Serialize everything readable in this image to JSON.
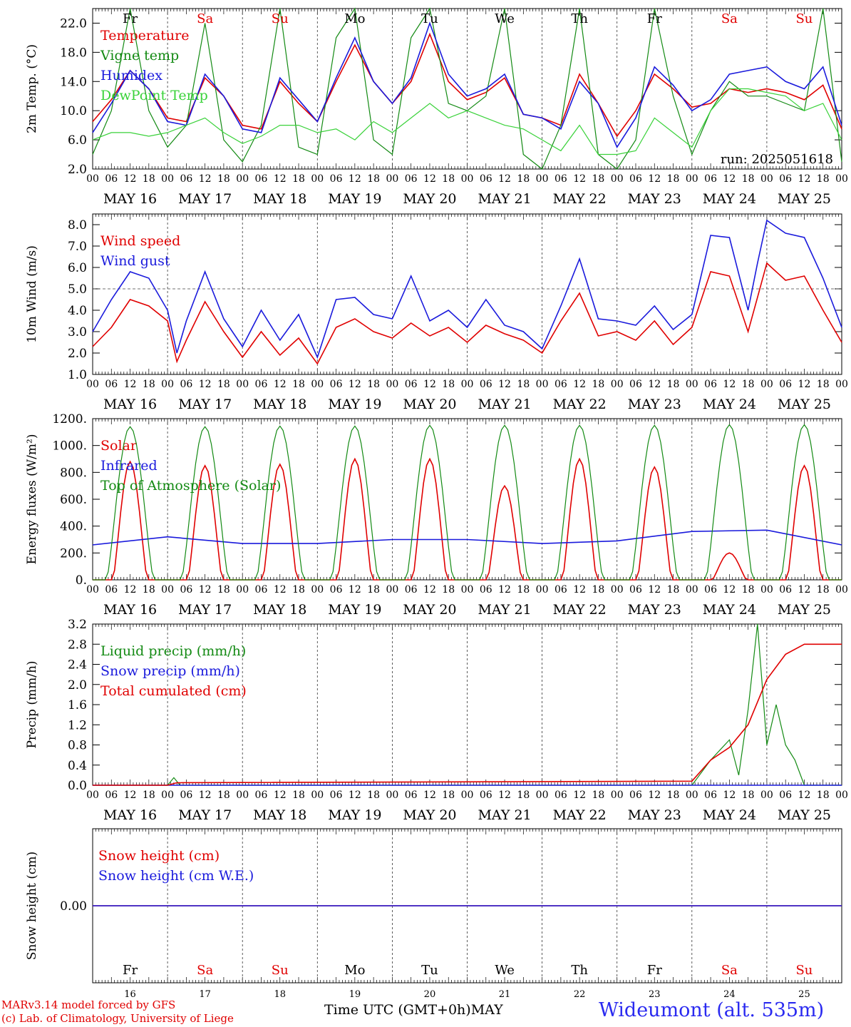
{
  "colors": {
    "red": "#e00000",
    "green": "#138a13",
    "blue": "#1a1adc",
    "lightgreen": "#3ad23a",
    "grid": "#555555"
  },
  "days": [
    {
      "abbr": "Fr",
      "weekend": false,
      "date": "MAY 16",
      "num": "16"
    },
    {
      "abbr": "Sa",
      "weekend": true,
      "date": "MAY 17",
      "num": "17"
    },
    {
      "abbr": "Su",
      "weekend": true,
      "date": "MAY 18",
      "num": "18"
    },
    {
      "abbr": "Mo",
      "weekend": false,
      "date": "MAY 19",
      "num": "19"
    },
    {
      "abbr": "Tu",
      "weekend": false,
      "date": "MAY 20",
      "num": "20"
    },
    {
      "abbr": "We",
      "weekend": false,
      "date": "MAY 21",
      "num": "21"
    },
    {
      "abbr": "Th",
      "weekend": false,
      "date": "MAY 22",
      "num": "22"
    },
    {
      "abbr": "Fr",
      "weekend": false,
      "date": "MAY 23",
      "num": "23"
    },
    {
      "abbr": "Sa",
      "weekend": true,
      "date": "MAY 24",
      "num": "24"
    },
    {
      "abbr": "Su",
      "weekend": true,
      "date": "MAY 25",
      "num": "25"
    }
  ],
  "hour_labels": [
    "00",
    "06",
    "12",
    "18"
  ],
  "footer": {
    "model": "MARv3.14 model forced by GFS",
    "credit": "(c) Lab. of Climatology, University of Liege",
    "axis_title": "Time UTC (GMT+0h)",
    "month": "MAY",
    "station": "Wideumont (alt. 535m)"
  },
  "chart_data": [
    {
      "type": "line",
      "ylabel": "2m Temp. (°C)",
      "ylim": [
        2,
        24
      ],
      "yticks": [
        "2.0",
        "6.0",
        "10.0",
        "14.0",
        "18.0",
        "22.0"
      ],
      "ytick_values": [
        2,
        6,
        10,
        14,
        18,
        22
      ],
      "run_label": "run: 2025051618",
      "series": [
        {
          "name": "Temperature",
          "color": "red",
          "x": [
            0,
            6,
            12,
            18,
            24,
            30,
            36,
            42,
            48,
            54,
            60,
            66,
            72,
            78,
            84,
            90,
            96,
            102,
            108,
            114,
            120,
            126,
            132,
            138,
            144,
            150,
            156,
            162,
            168,
            174,
            180,
            186,
            192,
            198,
            204,
            210,
            216,
            222,
            228,
            234,
            240
          ],
          "values": [
            8.5,
            11.5,
            15.5,
            13,
            9,
            8.5,
            14.5,
            12,
            8,
            7.5,
            14,
            11,
            8.5,
            14,
            19,
            14,
            11,
            14,
            20.5,
            14,
            11.5,
            12.5,
            14.5,
            9.5,
            9,
            8,
            15,
            11,
            6.5,
            10,
            15,
            13,
            10.5,
            11,
            13,
            12.5,
            13,
            12.5,
            11.5,
            13.5,
            7.5
          ]
        },
        {
          "name": "Vigne temp",
          "color": "green",
          "x": [
            0,
            6,
            12,
            18,
            24,
            30,
            36,
            42,
            48,
            54,
            60,
            66,
            72,
            78,
            84,
            90,
            96,
            102,
            108,
            114,
            120,
            126,
            132,
            138,
            144,
            150,
            156,
            162,
            168,
            174,
            180,
            186,
            192,
            198,
            204,
            210,
            216,
            222,
            228,
            234,
            240
          ],
          "values": [
            4,
            10,
            24,
            10,
            5,
            8,
            22,
            6,
            3,
            8,
            24,
            5,
            4,
            20,
            24,
            6,
            4,
            20,
            24,
            11,
            10,
            12,
            24,
            4,
            2,
            8,
            24,
            4,
            2,
            6,
            24,
            12,
            4,
            10,
            14,
            12,
            12,
            11,
            10,
            24,
            3
          ]
        },
        {
          "name": "Humidex",
          "color": "blue",
          "x": [
            0,
            6,
            12,
            18,
            24,
            30,
            36,
            42,
            48,
            54,
            60,
            66,
            72,
            78,
            84,
            90,
            96,
            102,
            108,
            114,
            120,
            126,
            132,
            138,
            144,
            150,
            156,
            162,
            168,
            174,
            180,
            186,
            192,
            198,
            204,
            210,
            216,
            222,
            228,
            234,
            240
          ],
          "values": [
            7,
            11,
            15.5,
            13,
            8.5,
            8,
            15,
            12,
            7.5,
            7,
            14.5,
            11.5,
            8.5,
            14.5,
            20,
            14,
            11,
            14.5,
            22,
            15,
            12,
            13,
            15,
            9.5,
            9,
            7.5,
            14,
            11,
            5,
            9,
            16,
            13.5,
            10,
            11.5,
            15,
            15.5,
            16,
            14,
            13,
            16,
            8
          ]
        },
        {
          "name": "DewPoint Temp",
          "color": "lightgreen",
          "x": [
            0,
            6,
            12,
            18,
            24,
            30,
            36,
            42,
            48,
            54,
            60,
            66,
            72,
            78,
            84,
            90,
            96,
            102,
            108,
            114,
            120,
            126,
            132,
            138,
            144,
            150,
            156,
            162,
            168,
            174,
            180,
            186,
            192,
            198,
            204,
            210,
            216,
            222,
            228,
            234,
            240
          ],
          "values": [
            6,
            7,
            7,
            6.5,
            7,
            8,
            9,
            7,
            5.5,
            6.5,
            8,
            8,
            7,
            7.5,
            6,
            8.5,
            7,
            9,
            11,
            9,
            10,
            9,
            8,
            7.5,
            6,
            4.5,
            8,
            4,
            4,
            4.5,
            9,
            7,
            5,
            10,
            13,
            13,
            12.5,
            12,
            10,
            11,
            6
          ]
        }
      ]
    },
    {
      "type": "line",
      "ylabel": "10m Wind (m/s)",
      "ylim": [
        1,
        8.5
      ],
      "yticks": [
        "1.0",
        "2.0",
        "3.0",
        "4.0",
        "5.0",
        "6.0",
        "7.0",
        "8.0"
      ],
      "ytick_values": [
        1,
        2,
        3,
        4,
        5,
        6,
        7,
        8
      ],
      "reference_line": 5,
      "series": [
        {
          "name": "Wind speed",
          "color": "red",
          "x": [
            0,
            6,
            12,
            18,
            24,
            27,
            30,
            36,
            42,
            48,
            54,
            60,
            66,
            72,
            78,
            84,
            90,
            96,
            102,
            108,
            114,
            120,
            126,
            132,
            138,
            144,
            150,
            156,
            162,
            168,
            174,
            180,
            186,
            192,
            198,
            204,
            210,
            213,
            216,
            222,
            228,
            234,
            240
          ],
          "values": [
            2.3,
            3.2,
            4.5,
            4.2,
            3.5,
            1.6,
            2.6,
            4.4,
            3.0,
            1.8,
            3.0,
            1.9,
            2.7,
            1.5,
            3.2,
            3.6,
            3.0,
            2.7,
            3.4,
            2.8,
            3.2,
            2.5,
            3.3,
            2.9,
            2.6,
            2.0,
            3.5,
            4.8,
            2.8,
            3.0,
            2.6,
            3.5,
            2.4,
            3.2,
            5.8,
            5.6,
            3.0,
            4.6,
            6.2,
            5.4,
            5.6,
            4.0,
            2.5
          ]
        },
        {
          "name": "Wind gust",
          "color": "blue",
          "x": [
            0,
            6,
            12,
            18,
            24,
            27,
            30,
            36,
            42,
            48,
            54,
            60,
            66,
            72,
            78,
            84,
            90,
            96,
            102,
            108,
            114,
            120,
            126,
            132,
            138,
            144,
            150,
            156,
            162,
            168,
            174,
            180,
            186,
            192,
            198,
            204,
            210,
            213,
            216,
            222,
            228,
            234,
            240
          ],
          "values": [
            3.0,
            4.5,
            5.8,
            5.5,
            4.0,
            2.0,
            3.5,
            5.8,
            3.6,
            2.3,
            4.0,
            2.6,
            3.8,
            1.8,
            4.5,
            4.6,
            3.8,
            3.6,
            5.6,
            3.5,
            4.0,
            3.2,
            4.5,
            3.3,
            3.0,
            2.2,
            4.2,
            6.4,
            3.6,
            3.5,
            3.3,
            4.2,
            3.1,
            3.8,
            7.5,
            7.4,
            4.0,
            6.2,
            8.2,
            7.6,
            7.4,
            5.5,
            3.2
          ]
        }
      ]
    },
    {
      "type": "line",
      "ylabel": "Energy fluxes (W/m²)",
      "ylim": [
        0,
        1200
      ],
      "yticks": [
        "0.",
        "200.",
        "400.",
        "600.",
        "800.",
        "1000.",
        "1200."
      ],
      "ytick_values": [
        0,
        200,
        400,
        600,
        800,
        1000,
        1200
      ],
      "series": [
        {
          "name": "Solar",
          "color": "red",
          "peaks": [
            {
              "day": 0,
              "value": 880
            },
            {
              "day": 1,
              "value": 850
            },
            {
              "day": 2,
              "value": 860
            },
            {
              "day": 3,
              "value": 900
            },
            {
              "day": 4,
              "value": 900
            },
            {
              "day": 5,
              "value": 700
            },
            {
              "day": 6,
              "value": 900
            },
            {
              "day": 7,
              "value": 840
            },
            {
              "day": 8,
              "value": 200
            },
            {
              "day": 9,
              "value": 850
            }
          ]
        },
        {
          "name": "Infrared",
          "color": "blue",
          "x": [
            0,
            24,
            48,
            72,
            96,
            120,
            144,
            168,
            192,
            216,
            240
          ],
          "values": [
            260,
            320,
            270,
            270,
            300,
            300,
            270,
            290,
            360,
            370,
            260
          ]
        },
        {
          "name": "Top of Atmosphere (Solar)",
          "color": "green",
          "peaks": [
            {
              "day": 0,
              "value": 1140
            },
            {
              "day": 1,
              "value": 1140
            },
            {
              "day": 2,
              "value": 1145
            },
            {
              "day": 3,
              "value": 1145
            },
            {
              "day": 4,
              "value": 1150
            },
            {
              "day": 5,
              "value": 1150
            },
            {
              "day": 6,
              "value": 1150
            },
            {
              "day": 7,
              "value": 1150
            },
            {
              "day": 8,
              "value": 1155
            },
            {
              "day": 9,
              "value": 1155
            }
          ]
        }
      ]
    },
    {
      "type": "line",
      "ylabel": "Precip (mm/h)",
      "ylim": [
        0,
        3.2
      ],
      "yticks": [
        "0.0",
        "0.4",
        "0.8",
        "1.2",
        "1.6",
        "2.0",
        "2.4",
        "2.8",
        "3.2"
      ],
      "ytick_values": [
        0,
        0.4,
        0.8,
        1.2,
        1.6,
        2.0,
        2.4,
        2.8,
        3.2
      ],
      "series": [
        {
          "name": "Liquid precip (mm/h)",
          "color": "green",
          "x": [
            0,
            24,
            26,
            28,
            48,
            120,
            192,
            198,
            204,
            207,
            210,
            213,
            216,
            219,
            222,
            225,
            228,
            232,
            240
          ],
          "values": [
            0,
            0,
            0.15,
            0,
            0,
            0,
            0,
            0.5,
            0.9,
            0.2,
            1.5,
            3.2,
            0.8,
            1.6,
            0.8,
            0.5,
            0,
            0,
            0
          ]
        },
        {
          "name": "Snow precip (mm/h)",
          "color": "blue",
          "x": [
            0,
            240
          ],
          "values": [
            0,
            0
          ]
        },
        {
          "name": "Total cumulated (cm)",
          "color": "red",
          "x": [
            0,
            24,
            27,
            192,
            198,
            204,
            210,
            216,
            222,
            228,
            234,
            240
          ],
          "values": [
            0,
            0,
            0.05,
            0.08,
            0.5,
            0.75,
            1.2,
            2.1,
            2.6,
            2.8,
            2.8,
            2.8
          ]
        }
      ]
    },
    {
      "type": "line",
      "ylabel": "Snow height (cm)",
      "ylim": [
        -1,
        1
      ],
      "yticks": [
        "0.00"
      ],
      "ytick_values": [
        0
      ],
      "series": [
        {
          "name": "Snow height (cm)",
          "color": "red",
          "x": [
            0,
            240
          ],
          "values": [
            0,
            0
          ]
        },
        {
          "name": "Snow height (cm W.E.)",
          "color": "blue",
          "x": [
            0,
            240
          ],
          "values": [
            0,
            0
          ]
        }
      ]
    }
  ]
}
